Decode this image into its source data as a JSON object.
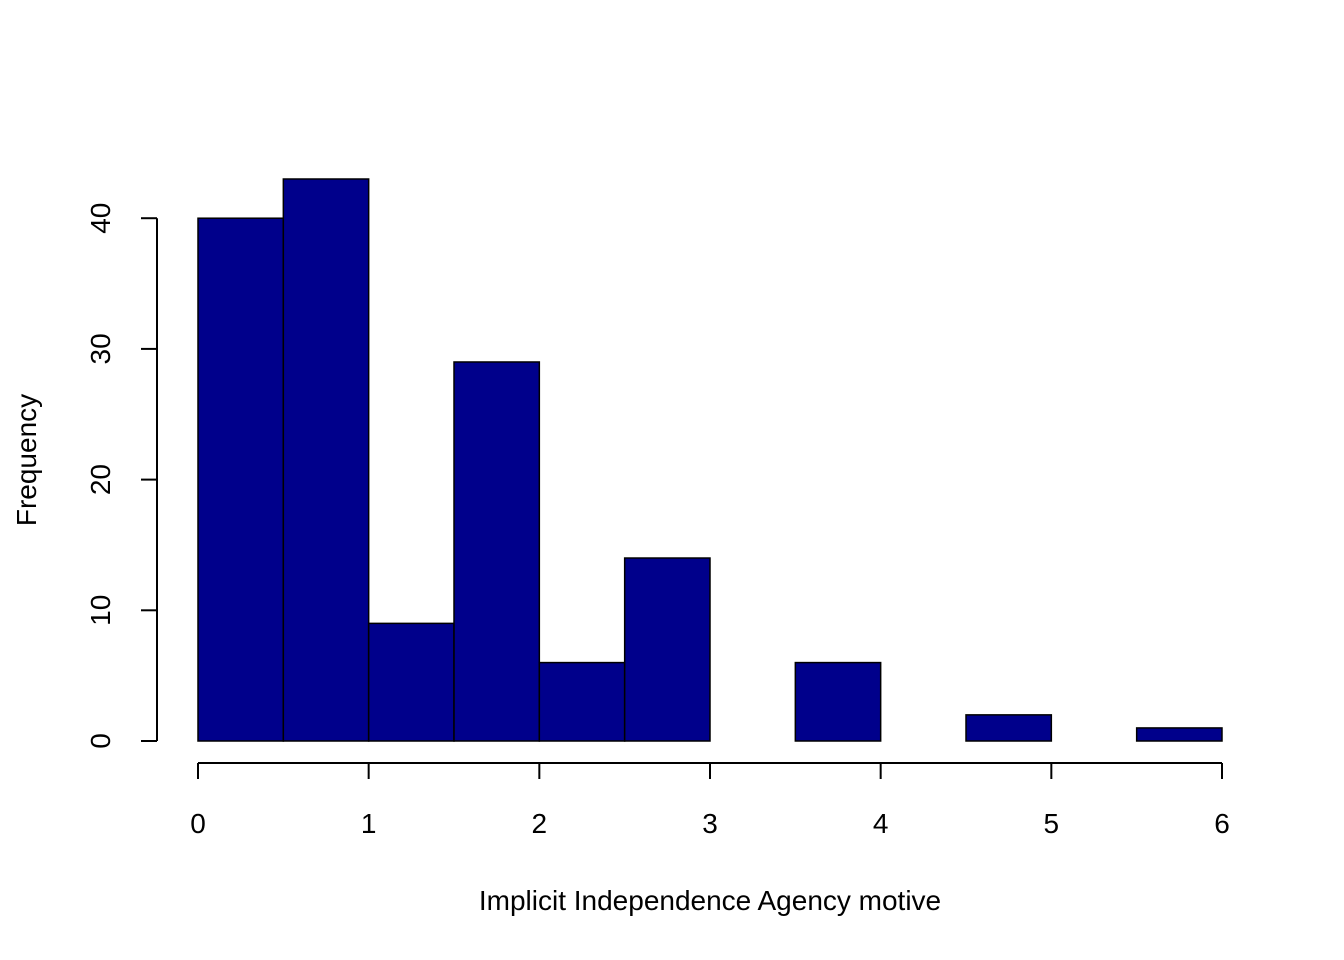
{
  "chart_data": {
    "type": "bar",
    "histogram": true,
    "bin_edges": [
      0,
      0.5,
      1,
      1.5,
      2,
      2.5,
      3,
      3.5,
      4,
      4.5,
      5,
      5.5,
      6
    ],
    "values": [
      40,
      43,
      9,
      29,
      6,
      14,
      0,
      6,
      0,
      2,
      0,
      1
    ],
    "title": "",
    "xlabel": "Implicit Independence Agency motive",
    "ylabel": "Frequency",
    "xlim": [
      0,
      6
    ],
    "ylim": [
      0,
      43
    ],
    "x_ticks": [
      "0",
      "1",
      "2",
      "3",
      "4",
      "5",
      "6"
    ],
    "y_ticks": [
      "0",
      "10",
      "20",
      "30",
      "40"
    ],
    "bar_color": "#00008B",
    "grid": false,
    "legend": "none"
  }
}
